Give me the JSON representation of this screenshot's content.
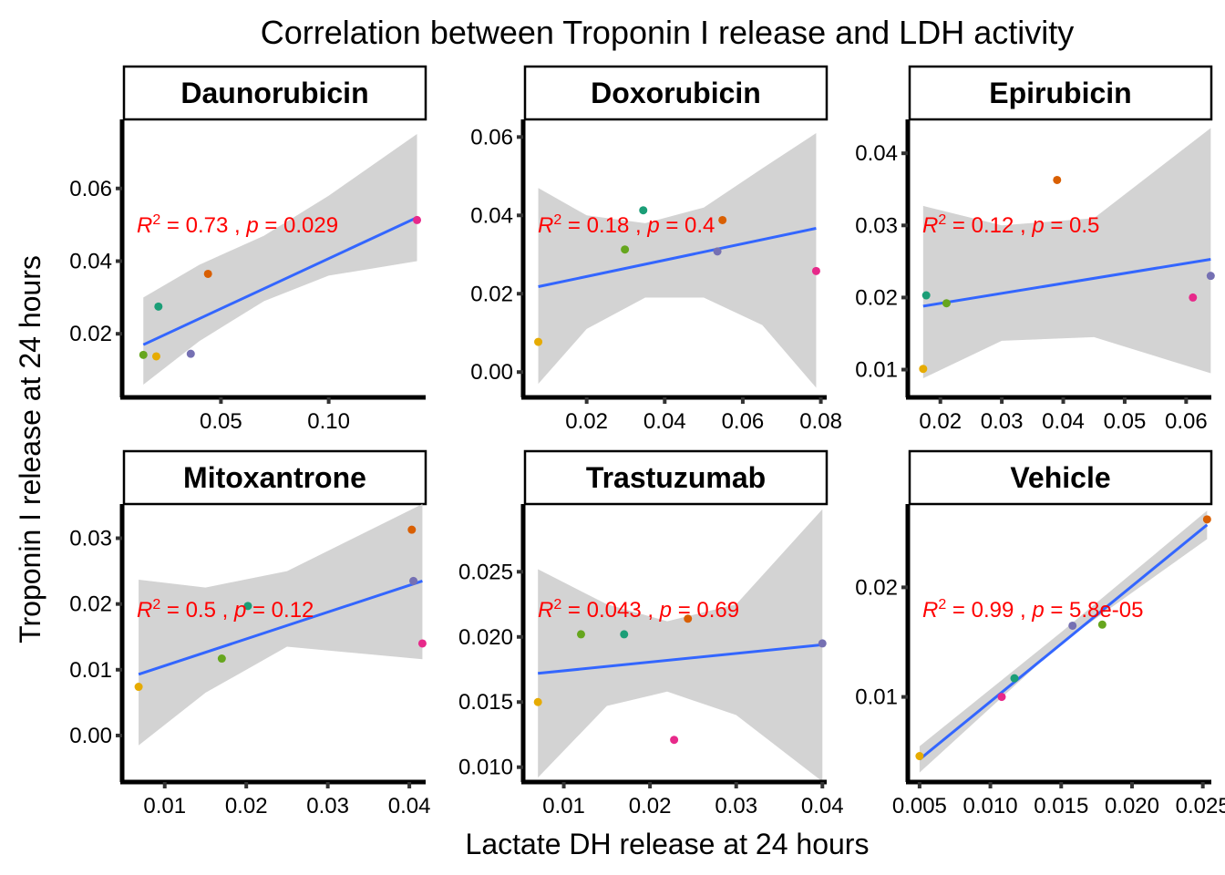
{
  "figure": {
    "title": "Correlation between Troponin I release and LDH activity",
    "xlabel": "Lactate DH release at 24 hours",
    "ylabel": "Troponin I release at 24 hours"
  },
  "colors": {
    "fit_line": "#3366ff",
    "ci_band": "#d3d3d3",
    "annotation": "#ff0000",
    "points": [
      "#1b9e77",
      "#d95f02",
      "#7570b3",
      "#e7298a",
      "#66a61e",
      "#e6ab02"
    ]
  },
  "chart_data": [
    {
      "type": "scatter",
      "panel": "Daunorubicin",
      "annotation": {
        "r2": "0.73",
        "p": "0.029"
      },
      "xlim": [
        0.005,
        0.145
      ],
      "ylim": [
        0.003,
        0.079
      ],
      "xticks": [
        0.05,
        0.1
      ],
      "xtick_labels": [
        "0.05",
        "0.10"
      ],
      "yticks": [
        0.02,
        0.04,
        0.06
      ],
      "ytick_labels": [
        "0.02",
        "0.04",
        "0.06"
      ],
      "points": [
        {
          "x": 0.014,
          "y": 0.0142,
          "c": 4
        },
        {
          "x": 0.021,
          "y": 0.0275,
          "c": 0
        },
        {
          "x": 0.02,
          "y": 0.0138,
          "c": 5
        },
        {
          "x": 0.036,
          "y": 0.0145,
          "c": 2
        },
        {
          "x": 0.044,
          "y": 0.0365,
          "c": 1
        },
        {
          "x": 0.141,
          "y": 0.0513,
          "c": 3
        }
      ],
      "fit": {
        "x": [
          0.014,
          0.141
        ],
        "y": [
          0.017,
          0.052
        ]
      },
      "ci": {
        "x": [
          0.014,
          0.04,
          0.07,
          0.1,
          0.141
        ],
        "lower": [
          0.006,
          0.018,
          0.029,
          0.036,
          0.04
        ],
        "upper": [
          0.03,
          0.039,
          0.047,
          0.058,
          0.075
        ]
      }
    },
    {
      "type": "scatter",
      "panel": "Doxorubicin",
      "annotation": {
        "r2": "0.18",
        "p": "0.4"
      },
      "xlim": [
        0.0042,
        0.0815
      ],
      "ylim": [
        -0.006,
        0.0645
      ],
      "xticks": [
        0.02,
        0.04,
        0.06,
        0.08
      ],
      "xtick_labels": [
        "0.02",
        "0.04",
        "0.06",
        "0.08"
      ],
      "yticks": [
        0.0,
        0.02,
        0.04,
        0.06
      ],
      "ytick_labels": [
        "0.00",
        "0.02",
        "0.04",
        "0.06"
      ],
      "points": [
        {
          "x": 0.0076,
          "y": 0.0077,
          "c": 5
        },
        {
          "x": 0.0298,
          "y": 0.0313,
          "c": 4
        },
        {
          "x": 0.0345,
          "y": 0.0413,
          "c": 0
        },
        {
          "x": 0.0535,
          "y": 0.0308,
          "c": 2
        },
        {
          "x": 0.0548,
          "y": 0.0388,
          "c": 1
        },
        {
          "x": 0.0788,
          "y": 0.0258,
          "c": 3
        }
      ],
      "fit": {
        "x": [
          0.0076,
          0.0788
        ],
        "y": [
          0.0218,
          0.0367
        ]
      },
      "ci": {
        "x": [
          0.0076,
          0.02,
          0.035,
          0.05,
          0.065,
          0.0788
        ],
        "lower": [
          -0.003,
          0.011,
          0.019,
          0.019,
          0.012,
          -0.004
        ],
        "upper": [
          0.047,
          0.04,
          0.038,
          0.042,
          0.052,
          0.061
        ]
      }
    },
    {
      "type": "scatter",
      "panel": "Epirubicin",
      "annotation": {
        "r2": "0.12",
        "p": "0.5"
      },
      "xlim": [
        0.015,
        0.0641
      ],
      "ylim": [
        0.0064,
        0.0447
      ],
      "xticks": [
        0.02,
        0.03,
        0.04,
        0.05,
        0.06
      ],
      "xtick_labels": [
        "0.02",
        "0.03",
        "0.04",
        "0.05",
        "0.06"
      ],
      "yticks": [
        0.01,
        0.02,
        0.03,
        0.04
      ],
      "ytick_labels": [
        "0.01",
        "0.02",
        "0.03",
        "0.04"
      ],
      "points": [
        {
          "x": 0.0172,
          "y": 0.0101,
          "c": 5
        },
        {
          "x": 0.0177,
          "y": 0.0203,
          "c": 0
        },
        {
          "x": 0.021,
          "y": 0.0192,
          "c": 4
        },
        {
          "x": 0.039,
          "y": 0.0363,
          "c": 1
        },
        {
          "x": 0.0611,
          "y": 0.02,
          "c": 3
        },
        {
          "x": 0.064,
          "y": 0.023,
          "c": 2
        }
      ],
      "fit": {
        "x": [
          0.0172,
          0.064
        ],
        "y": [
          0.0188,
          0.0253
        ]
      },
      "ci": {
        "x": [
          0.0172,
          0.03,
          0.045,
          0.064
        ],
        "lower": [
          0.0088,
          0.014,
          0.0145,
          0.0095
        ],
        "upper": [
          0.0327,
          0.03,
          0.031,
          0.0435
        ]
      }
    },
    {
      "type": "scatter",
      "panel": "Mitoxantrone",
      "annotation": {
        "r2": "0.5",
        "p": "0.12"
      },
      "xlim": [
        0.005,
        0.042
      ],
      "ylim": [
        -0.0068,
        0.0352
      ],
      "xticks": [
        0.01,
        0.02,
        0.03,
        0.04
      ],
      "xtick_labels": [
        "0.01",
        "0.02",
        "0.03",
        "0.04"
      ],
      "yticks": [
        0.0,
        0.01,
        0.02,
        0.03
      ],
      "ytick_labels": [
        "0.00",
        "0.01",
        "0.02",
        "0.03"
      ],
      "points": [
        {
          "x": 0.0068,
          "y": 0.0074,
          "c": 5
        },
        {
          "x": 0.017,
          "y": 0.0117,
          "c": 4
        },
        {
          "x": 0.0202,
          "y": 0.0197,
          "c": 0
        },
        {
          "x": 0.0403,
          "y": 0.0313,
          "c": 1
        },
        {
          "x": 0.0405,
          "y": 0.0235,
          "c": 2
        },
        {
          "x": 0.0416,
          "y": 0.014,
          "c": 3
        }
      ],
      "fit": {
        "x": [
          0.0068,
          0.0416
        ],
        "y": [
          0.0093,
          0.0235
        ]
      },
      "ci": {
        "x": [
          0.0068,
          0.015,
          0.025,
          0.0416
        ],
        "lower": [
          -0.0015,
          0.0065,
          0.0135,
          0.0116
        ],
        "upper": [
          0.0237,
          0.0225,
          0.025,
          0.0352
        ]
      }
    },
    {
      "type": "scatter",
      "panel": "Trastuzumab",
      "annotation": {
        "r2": "0.043",
        "p": "0.69"
      },
      "xlim": [
        0.0055,
        0.0405
      ],
      "ylim": [
        0.009,
        0.0302
      ],
      "xticks": [
        0.01,
        0.02,
        0.03,
        0.04
      ],
      "xtick_labels": [
        "0.01",
        "0.02",
        "0.03",
        "0.04"
      ],
      "yticks": [
        0.01,
        0.015,
        0.02,
        0.025
      ],
      "ytick_labels": [
        "0.010",
        "0.015",
        "0.020",
        "0.025"
      ],
      "points": [
        {
          "x": 0.007,
          "y": 0.015,
          "c": 5
        },
        {
          "x": 0.012,
          "y": 0.0202,
          "c": 4
        },
        {
          "x": 0.017,
          "y": 0.0202,
          "c": 0
        },
        {
          "x": 0.0228,
          "y": 0.0121,
          "c": 3
        },
        {
          "x": 0.0244,
          "y": 0.0214,
          "c": 1
        },
        {
          "x": 0.04,
          "y": 0.0195,
          "c": 2
        }
      ],
      "fit": {
        "x": [
          0.007,
          0.04
        ],
        "y": [
          0.0172,
          0.0194
        ]
      },
      "ci": {
        "x": [
          0.007,
          0.015,
          0.022,
          0.03,
          0.04
        ],
        "lower": [
          0.0092,
          0.0147,
          0.0158,
          0.014,
          0.0089
        ],
        "upper": [
          0.0252,
          0.0225,
          0.0212,
          0.0225,
          0.0298
        ]
      }
    },
    {
      "type": "scatter",
      "panel": "Vehicle",
      "annotation": {
        "r2": "0.99",
        "p": "5.8e-05"
      },
      "xlim": [
        0.0043,
        0.0256
      ],
      "ylim": [
        0.0024,
        0.0276
      ],
      "xticks": [
        0.005,
        0.01,
        0.015,
        0.02,
        0.025
      ],
      "xtick_labels": [
        "0.005",
        "0.010",
        "0.015",
        "0.020",
        "0.025"
      ],
      "yticks": [
        0.01,
        0.02
      ],
      "ytick_labels": [
        "0.01",
        "0.02"
      ],
      "points": [
        {
          "x": 0.005,
          "y": 0.0046,
          "c": 5
        },
        {
          "x": 0.0108,
          "y": 0.01,
          "c": 3
        },
        {
          "x": 0.0117,
          "y": 0.0117,
          "c": 0
        },
        {
          "x": 0.0158,
          "y": 0.0165,
          "c": 2
        },
        {
          "x": 0.0179,
          "y": 0.0166,
          "c": 4
        },
        {
          "x": 0.0253,
          "y": 0.0262,
          "c": 1
        }
      ],
      "fit": {
        "x": [
          0.005,
          0.0253
        ],
        "y": [
          0.0043,
          0.0257
        ]
      },
      "ci": {
        "x": [
          0.005,
          0.015,
          0.0253
        ],
        "lower": [
          0.0031,
          0.0149,
          0.0244
        ],
        "upper": [
          0.0055,
          0.0159,
          0.027
        ]
      }
    }
  ]
}
